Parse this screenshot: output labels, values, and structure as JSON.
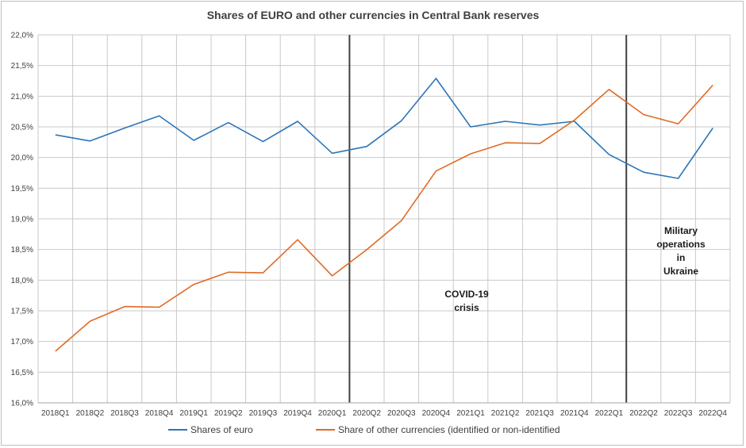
{
  "chart_data": {
    "type": "line",
    "title": "Shares of EURO and other currencies in Central Bank reserves",
    "xlabel": "",
    "ylabel": "",
    "categories": [
      "2018Q1",
      "2018Q2",
      "2018Q3",
      "2018Q4",
      "2019Q1",
      "2019Q2",
      "2019Q3",
      "2019Q4",
      "2020Q1",
      "2020Q2",
      "2020Q3",
      "2020Q4",
      "2021Q1",
      "2021Q2",
      "2021Q3",
      "2021Q4",
      "2022Q1",
      "2022Q2",
      "2022Q3",
      "2022Q4"
    ],
    "ylim": [
      16.0,
      22.0
    ],
    "yticks": [
      "16,0%",
      "16,5%",
      "17,0%",
      "17,5%",
      "18,0%",
      "18,5%",
      "19,0%",
      "19,5%",
      "20,0%",
      "20,5%",
      "21,0%",
      "21,5%",
      "22,0%"
    ],
    "grid": true,
    "legend_position": "bottom",
    "series": [
      {
        "name": "Shares of euro",
        "color": "#2e75b6",
        "values": [
          20.37,
          20.27,
          20.48,
          20.68,
          20.28,
          20.57,
          20.26,
          20.59,
          20.07,
          20.18,
          20.6,
          21.29,
          20.5,
          20.59,
          20.53,
          20.59,
          20.05,
          19.76,
          19.66,
          20.48
        ]
      },
      {
        "name": "Share of other currencies (identified or non-identified",
        "color": "#e06b25",
        "values": [
          16.84,
          17.33,
          17.57,
          17.56,
          17.93,
          18.13,
          18.12,
          18.66,
          18.07,
          18.5,
          18.97,
          19.78,
          20.06,
          20.24,
          20.23,
          20.61,
          21.11,
          20.7,
          20.55,
          21.18
        ]
      }
    ],
    "markers": [
      {
        "after_category": "2020Q1",
        "label_lines": [
          "COVID-19",
          "crisis"
        ]
      },
      {
        "after_category": "2022Q1",
        "label_lines": [
          "Military",
          "operations",
          "in",
          "Ukraine"
        ]
      }
    ]
  }
}
